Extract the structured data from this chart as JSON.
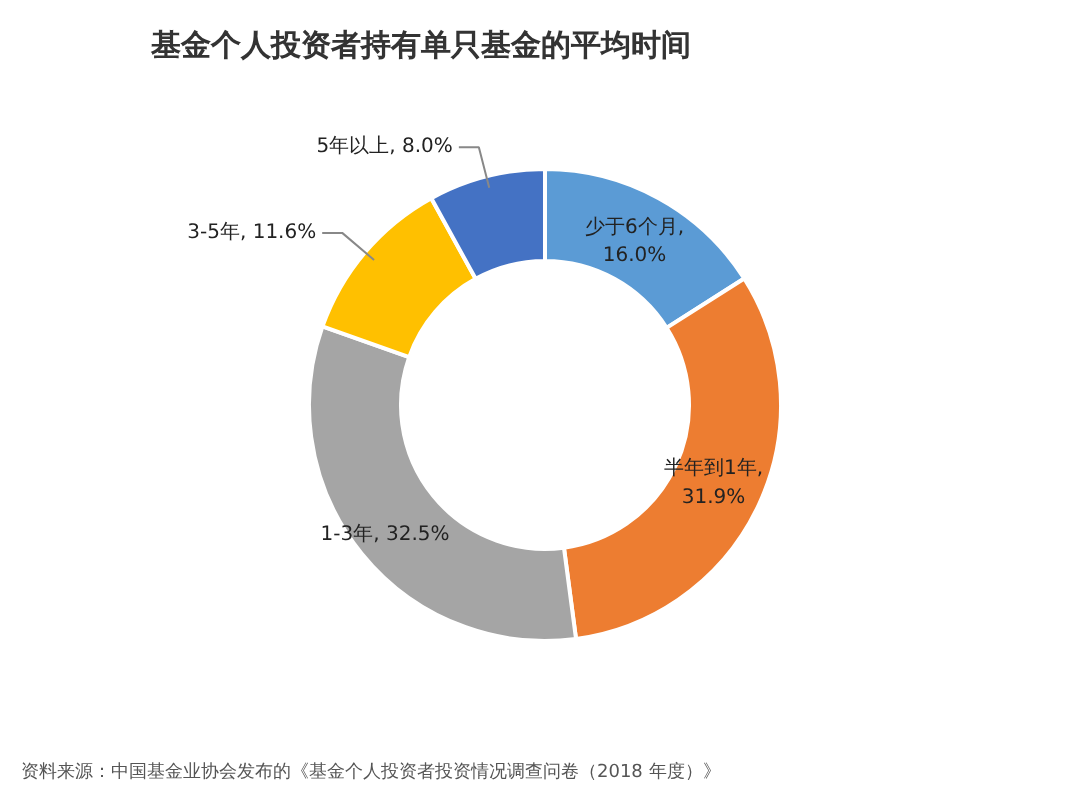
{
  "chart_data": {
    "type": "donut",
    "title": "基金个人投资者持有单只基金的平均时间",
    "categories": [
      "少于6个月",
      "半年到1年",
      "1-3年",
      "3-5年",
      "5年以上"
    ],
    "values": [
      16.0,
      31.9,
      32.5,
      11.6,
      8.0
    ],
    "colors": [
      "#5b9bd5",
      "#ed7d31",
      "#a5a5a5",
      "#ffc000",
      "#4472c4"
    ],
    "value_labels": [
      ", 16.0%",
      ", 31.9%",
      ", 32.5%",
      ", 11.6%",
      ", 8.0%"
    ],
    "annotations": [
      "资料来源：中国基金业协会发布的《基金个人投资者投资情况调查问卷（2018 年度）》"
    ]
  }
}
